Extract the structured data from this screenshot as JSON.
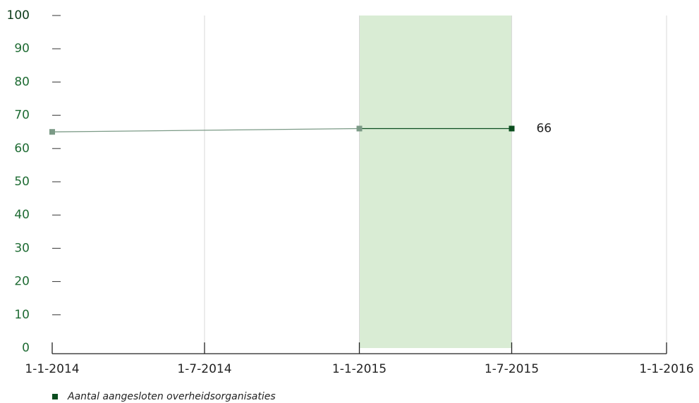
{
  "chart_data": {
    "type": "line",
    "x": [
      "2014-01-01",
      "2015-01-01",
      "2015-07-01"
    ],
    "series": [
      {
        "name": "Aantal aangesloten overheidsorganisaties",
        "color": "#0b4d1f",
        "muted_color": "#7b9a86",
        "values": [
          65,
          66,
          66
        ],
        "value_labels": [
          null,
          null,
          "66"
        ]
      }
    ],
    "highlight": [
      "2015-01-01",
      "2015-07-01"
    ],
    "highlight_color": "#d9ecd4",
    "xlim": [
      "2014-01-01",
      "2016-01-01"
    ],
    "xticks": [
      {
        "value": "2014-01-01",
        "label": "1-1-2014"
      },
      {
        "value": "2014-07-01",
        "label": "1-7-2014"
      },
      {
        "value": "2015-01-01",
        "label": "1-1-2015"
      },
      {
        "value": "2015-07-01",
        "label": "1-7-2015"
      },
      {
        "value": "2016-01-01",
        "label": "1-1-2016"
      }
    ],
    "ylim": [
      0,
      100
    ],
    "yticks": [
      0,
      10,
      20,
      30,
      40,
      50,
      60,
      70,
      80,
      90,
      100
    ],
    "grid": true,
    "legend": "bottom-left"
  }
}
